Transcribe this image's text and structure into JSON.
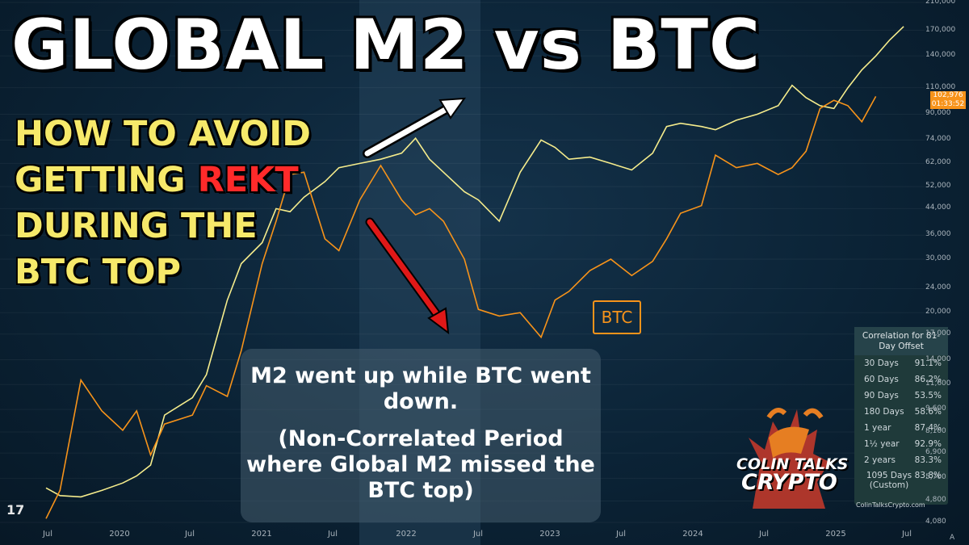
{
  "title": "GLOBAL M2 vs BTC",
  "subtitle": {
    "line1": "HOW TO AVOID",
    "line2_pre": "GETTING",
    "line2_rekt": "REKT",
    "line3": "DURING THE",
    "line4": "BTC TOP"
  },
  "callout": {
    "line1": "M2 went up while BTC went down.",
    "line2": "(Non-Correlated Period where Global M2 missed the BTC top)"
  },
  "btc_label": "BTC",
  "correlation": {
    "header": "Correlation for 81-Day Offset",
    "rows": [
      {
        "period": "30 Days",
        "value": "91.1%"
      },
      {
        "period": "60 Days",
        "value": "86.2%"
      },
      {
        "period": "90 Days",
        "value": "53.5%"
      },
      {
        "period": "180 Days",
        "value": "58.6%"
      },
      {
        "period": "1 year",
        "value": "87.4%"
      },
      {
        "period": "1½ year",
        "value": "92.9%"
      },
      {
        "period": "2 years",
        "value": "83.3%"
      },
      {
        "period": "1095 Days (Custom)",
        "value": "83.8%"
      }
    ]
  },
  "price_tag": {
    "price": "102,976",
    "time": "01:33:52"
  },
  "logo": {
    "line1": "COLIN TALKS",
    "line2": "CRYPTO"
  },
  "website": "ColinTalksCrypto.com",
  "tv_logo": "17",
  "a_mark": "A",
  "colors": {
    "btc": "#f7931a",
    "m2": "#f5ec8c",
    "arrow_white": "#ffffff",
    "arrow_red": "#e01818",
    "highlight": "#2a4a62"
  },
  "chart_data": {
    "type": "line",
    "x_ticks": [
      "Jul",
      "2020",
      "Jul",
      "2021",
      "Jul",
      "2022",
      "Jul",
      "2023",
      "Jul",
      "2024",
      "Jul",
      "2025",
      "Jul"
    ],
    "y_ticks": [
      "210,000",
      "170,000",
      "140,000",
      "110,000",
      "90,000",
      "74,000",
      "62,000",
      "52,000",
      "44,000",
      "36,000",
      "30,000",
      "24,000",
      "20,000",
      "17,000",
      "14,000",
      "11,600",
      "9,600",
      "8,100",
      "6,900",
      "5,700",
      "4,800",
      "4,080"
    ],
    "y_scale": "log",
    "series": [
      {
        "name": "BTC",
        "x": [
          2019.45,
          2019.55,
          2019.7,
          2019.85,
          2020.0,
          2020.1,
          2020.2,
          2020.3,
          2020.5,
          2020.6,
          2020.75,
          2020.85,
          2021.0,
          2021.1,
          2021.2,
          2021.3,
          2021.45,
          2021.55,
          2021.7,
          2021.85,
          2022.0,
          2022.1,
          2022.2,
          2022.3,
          2022.45,
          2022.55,
          2022.7,
          2022.85,
          2023.0,
          2023.1,
          2023.2,
          2023.35,
          2023.5,
          2023.65,
          2023.8,
          2023.9,
          2024.0,
          2024.15,
          2024.25,
          2024.4,
          2024.55,
          2024.7,
          2024.8,
          2024.9,
          2025.0,
          2025.1,
          2025.2,
          2025.3,
          2025.4
        ],
        "y": [
          4200,
          5200,
          12000,
          9500,
          8200,
          9500,
          6800,
          8600,
          9200,
          11500,
          10600,
          15000,
          29000,
          40000,
          57000,
          58000,
          35000,
          32000,
          47000,
          61000,
          47000,
          42000,
          44000,
          40000,
          30000,
          20500,
          19500,
          20000,
          16600,
          22000,
          23500,
          27500,
          30000,
          26500,
          29500,
          35000,
          42500,
          45000,
          66000,
          60000,
          62000,
          57000,
          60000,
          68000,
          94000,
          100000,
          96000,
          85000,
          103000
        ]
      },
      {
        "name": "M2",
        "x": [
          2019.45,
          2019.55,
          2019.7,
          2019.85,
          2020.0,
          2020.1,
          2020.2,
          2020.3,
          2020.5,
          2020.6,
          2020.75,
          2020.85,
          2021.0,
          2021.1,
          2021.2,
          2021.3,
          2021.45,
          2021.55,
          2021.7,
          2021.85,
          2022.0,
          2022.1,
          2022.2,
          2022.3,
          2022.45,
          2022.55,
          2022.7,
          2022.85,
          2023.0,
          2023.1,
          2023.2,
          2023.35,
          2023.5,
          2023.65,
          2023.8,
          2023.9,
          2024.0,
          2024.15,
          2024.25,
          2024.4,
          2024.55,
          2024.7,
          2024.8,
          2024.9,
          2025.0,
          2025.1,
          2025.2,
          2025.3,
          2025.4,
          2025.5,
          2025.6
        ],
        "y": [
          5300,
          5000,
          4950,
          5200,
          5500,
          5800,
          6300,
          9200,
          10500,
          12500,
          22000,
          29000,
          34000,
          44000,
          43000,
          48000,
          54000,
          60000,
          62000,
          64000,
          67000,
          75000,
          64000,
          58000,
          50000,
          47000,
          40000,
          58000,
          74000,
          70000,
          64000,
          65000,
          62000,
          59000,
          67000,
          82000,
          84000,
          82000,
          80000,
          86000,
          90000,
          96000,
          112000,
          102000,
          96000,
          94000,
          110000,
          126000,
          140000,
          158000,
          175000
        ]
      }
    ]
  }
}
